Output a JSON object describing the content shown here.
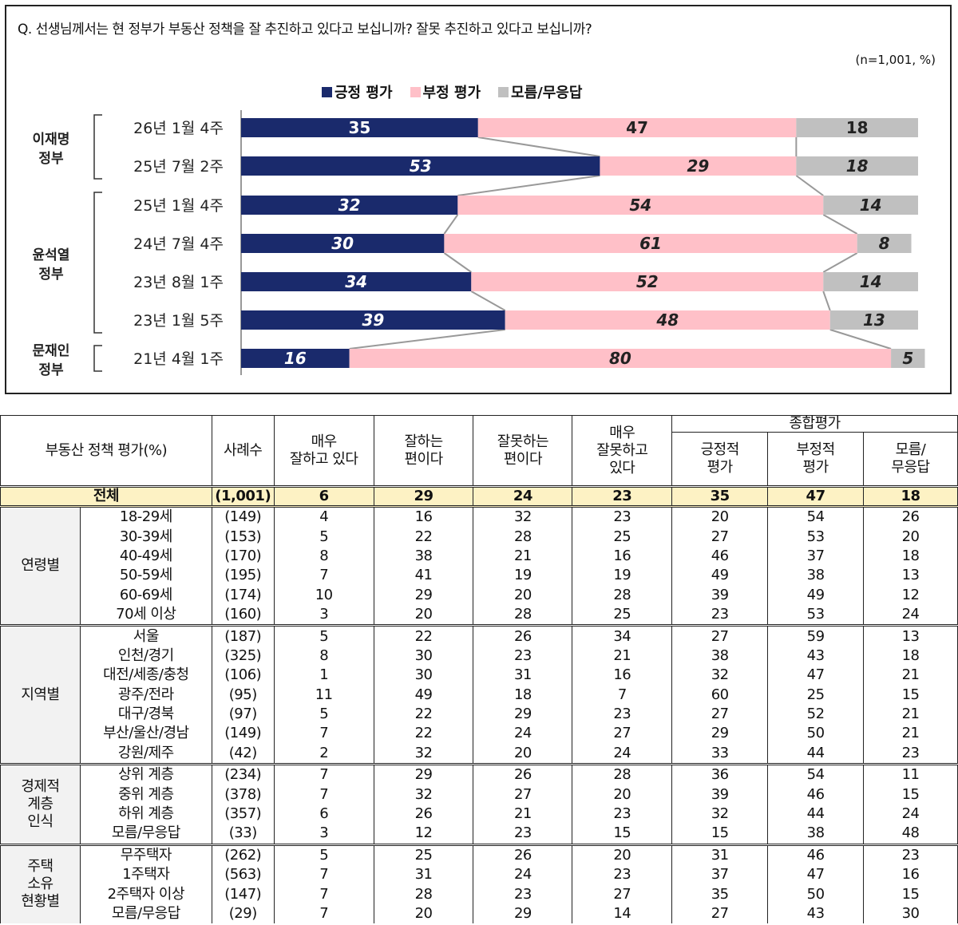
{
  "question": "Q. 선생님께서는 현 정부가 부동산 정책을 잘 추진하고 있다고 보십니까? 잘못 추진하고 있다고 보십니까?",
  "sample_note": "(n=1,001, %)",
  "chart_data": {
    "type": "bar",
    "stacked": true,
    "orientation": "horizontal",
    "categories": [
      "26년 1월 4주",
      "25년 7월 2주",
      "25년 1월 4주",
      "24년 7월 4주",
      "23년 8월 1주",
      "23년 1월 5주",
      "21년 4월 1주"
    ],
    "groups": [
      {
        "label": "이재명 정부",
        "members": [
          "26년 1월 4주",
          "25년 7월 2주"
        ]
      },
      {
        "label": "윤석열 정부",
        "members": [
          "25년 1월 4주",
          "24년 7월 4주",
          "23년 8월 1주",
          "23년 1월 5주"
        ]
      },
      {
        "label": "문재인 정부",
        "members": [
          "21년 4월 1주"
        ]
      }
    ],
    "series": [
      {
        "name": "긍정 평가",
        "color": "#1a2a6c",
        "values": [
          35,
          53,
          32,
          30,
          34,
          39,
          16
        ]
      },
      {
        "name": "부정 평가",
        "color": "#ffc0c8",
        "values": [
          47,
          29,
          54,
          61,
          52,
          48,
          80
        ]
      },
      {
        "name": "모름/무응답",
        "color": "#c0c0c0",
        "values": [
          18,
          18,
          14,
          8,
          14,
          13,
          5
        ]
      }
    ],
    "xlim": [
      0,
      100
    ],
    "legend": "top"
  },
  "table": {
    "header": {
      "title": "부동산 정책 평가(%)",
      "n": "사례수",
      "c1": "매우\n잘하고 있다",
      "c2": "잘하는\n편이다",
      "c3": "잘못하는\n편이다",
      "c4": "매우\n잘못하고\n있다",
      "overall": "종합평가",
      "c5": "긍정적\n평가",
      "c6": "부정적\n평가",
      "c7": "모름/\n무응답"
    },
    "total": [
      "전체",
      "(1,001)",
      "6",
      "29",
      "24",
      "23",
      "35",
      "47",
      "18"
    ],
    "groups": [
      {
        "label": "연령별",
        "rows": [
          [
            "18-29세",
            "(149)",
            "4",
            "16",
            "32",
            "23",
            "20",
            "54",
            "26"
          ],
          [
            "30-39세",
            "(153)",
            "5",
            "22",
            "28",
            "25",
            "27",
            "53",
            "20"
          ],
          [
            "40-49세",
            "(170)",
            "8",
            "38",
            "21",
            "16",
            "46",
            "37",
            "18"
          ],
          [
            "50-59세",
            "(195)",
            "7",
            "41",
            "19",
            "19",
            "49",
            "38",
            "13"
          ],
          [
            "60-69세",
            "(174)",
            "10",
            "29",
            "20",
            "28",
            "39",
            "49",
            "12"
          ],
          [
            "70세 이상",
            "(160)",
            "3",
            "20",
            "28",
            "25",
            "23",
            "53",
            "24"
          ]
        ]
      },
      {
        "label": "지역별",
        "rows": [
          [
            "서울",
            "(187)",
            "5",
            "22",
            "26",
            "34",
            "27",
            "59",
            "13"
          ],
          [
            "인천/경기",
            "(325)",
            "8",
            "30",
            "23",
            "21",
            "38",
            "43",
            "18"
          ],
          [
            "대전/세종/충청",
            "(106)",
            "1",
            "30",
            "31",
            "16",
            "32",
            "47",
            "21"
          ],
          [
            "광주/전라",
            "(95)",
            "11",
            "49",
            "18",
            "7",
            "60",
            "25",
            "15"
          ],
          [
            "대구/경북",
            "(97)",
            "5",
            "22",
            "29",
            "23",
            "27",
            "52",
            "21"
          ],
          [
            "부산/울산/경남",
            "(149)",
            "7",
            "22",
            "24",
            "27",
            "29",
            "50",
            "21"
          ],
          [
            "강원/제주",
            "(42)",
            "2",
            "32",
            "20",
            "24",
            "33",
            "44",
            "23"
          ]
        ]
      },
      {
        "label": "경제적\n계층\n인식",
        "rows": [
          [
            "상위 계층",
            "(234)",
            "7",
            "29",
            "26",
            "28",
            "36",
            "54",
            "11"
          ],
          [
            "중위 계층",
            "(378)",
            "7",
            "32",
            "27",
            "20",
            "39",
            "46",
            "15"
          ],
          [
            "하위 계층",
            "(357)",
            "6",
            "26",
            "21",
            "23",
            "32",
            "44",
            "24"
          ],
          [
            "모름/무응답",
            "(33)",
            "3",
            "12",
            "23",
            "15",
            "15",
            "38",
            "48"
          ]
        ]
      },
      {
        "label": "주택\n소유\n현황별",
        "rows": [
          [
            "무주택자",
            "(262)",
            "5",
            "25",
            "26",
            "20",
            "31",
            "46",
            "23"
          ],
          [
            "1주택자",
            "(563)",
            "7",
            "31",
            "24",
            "23",
            "37",
            "47",
            "16"
          ],
          [
            "2주택자 이상",
            "(147)",
            "7",
            "28",
            "23",
            "27",
            "35",
            "50",
            "15"
          ],
          [
            "모름/무응답",
            "(29)",
            "7",
            "20",
            "29",
            "14",
            "27",
            "43",
            "30"
          ]
        ]
      }
    ]
  }
}
